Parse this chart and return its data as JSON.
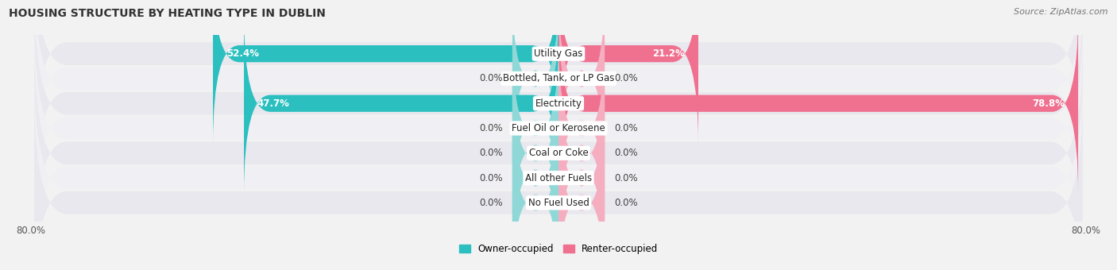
{
  "title": "HOUSING STRUCTURE BY HEATING TYPE IN DUBLIN",
  "source": "Source: ZipAtlas.com",
  "categories": [
    "Utility Gas",
    "Bottled, Tank, or LP Gas",
    "Electricity",
    "Fuel Oil or Kerosene",
    "Coal or Coke",
    "All other Fuels",
    "No Fuel Used"
  ],
  "owner_values": [
    52.4,
    0.0,
    47.7,
    0.0,
    0.0,
    0.0,
    0.0
  ],
  "renter_values": [
    21.2,
    0.0,
    78.8,
    0.0,
    0.0,
    0.0,
    0.0
  ],
  "owner_color": "#2bbfbf",
  "renter_color": "#f07090",
  "owner_color_zero": "#90d8d8",
  "renter_color_zero": "#f5aec0",
  "axis_max": 80.0,
  "background_color": "#f2f2f2",
  "row_bg_color": "#e8e8ee",
  "row_bg_light": "#f0f0f4",
  "title_fontsize": 10,
  "source_fontsize": 8,
  "label_fontsize": 8.5,
  "value_fontsize": 8.5
}
